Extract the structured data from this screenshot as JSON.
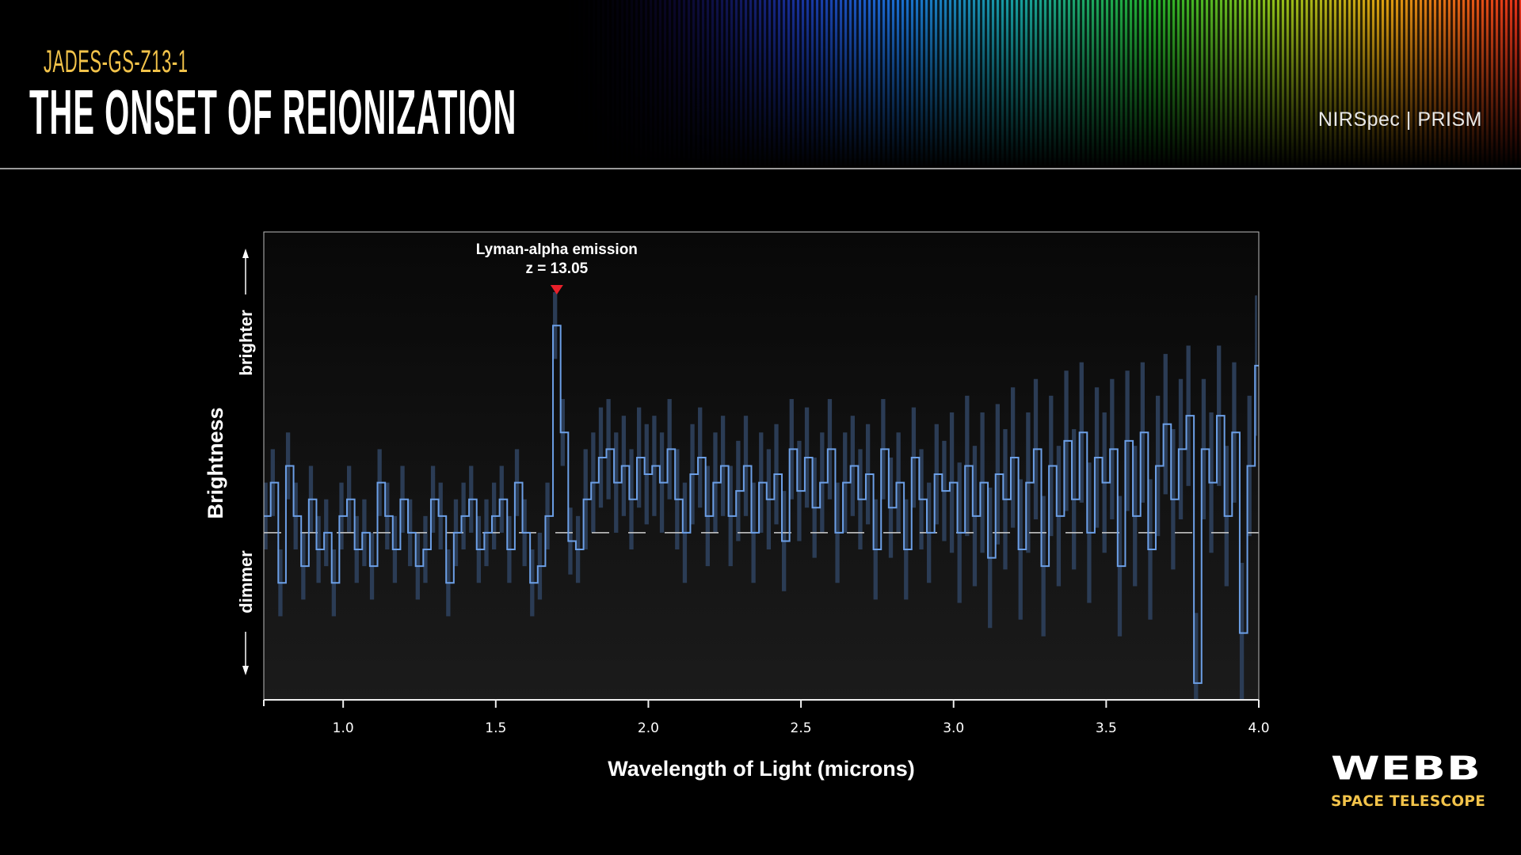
{
  "header": {
    "subtitle": "JADES-GS-Z13-1",
    "title": "THE ONSET OF REIONIZATION",
    "instrument": "NIRSpec | PRISM"
  },
  "logo": {
    "name": "WEBB",
    "tagline": "SPACE TELESCOPE"
  },
  "colors": {
    "accent_yellow": "#f2c34a",
    "spectrum_line": "#6c9fe6",
    "error_bars": "#2b3c55",
    "marker": "#e8202a"
  },
  "chart_data": {
    "type": "line",
    "style": "step",
    "xlabel": "Wavelength of Light (microns)",
    "ylabel": "Brightness",
    "ylabel_up": "brighter",
    "ylabel_down": "dimmer",
    "xlim": [
      0.74,
      4.0
    ],
    "ylim": [
      -1.0,
      1.8
    ],
    "xticks": [
      1.0,
      1.5,
      2.0,
      2.5,
      3.0,
      3.5,
      4.0
    ],
    "xtick_labels": [
      "1.0",
      "1.5",
      "2.0",
      "2.5",
      "3.0",
      "3.5",
      "4.0"
    ],
    "zero_line": {
      "y": 0,
      "style": "dashed"
    },
    "annotation": {
      "line1": "Lyman-alpha emission",
      "line2": "z = 13.05",
      "x": 1.7
    },
    "grid": false,
    "uncertainty": [
      {
        "from": 0.74,
        "to": 1.8,
        "sigma": 0.2
      },
      {
        "from": 1.8,
        "to": 3.0,
        "sigma": 0.3
      },
      {
        "from": 3.0,
        "to": 4.0,
        "sigma": 0.42
      }
    ],
    "x": [
      0.75,
      0.775,
      0.8,
      0.825,
      0.85,
      0.875,
      0.9,
      0.925,
      0.95,
      0.975,
      1.0,
      1.025,
      1.05,
      1.075,
      1.1,
      1.125,
      1.15,
      1.175,
      1.2,
      1.225,
      1.25,
      1.275,
      1.3,
      1.325,
      1.35,
      1.375,
      1.4,
      1.425,
      1.45,
      1.475,
      1.5,
      1.525,
      1.55,
      1.575,
      1.6,
      1.625,
      1.65,
      1.675,
      1.7,
      1.725,
      1.75,
      1.775,
      1.8,
      1.825,
      1.85,
      1.875,
      1.9,
      1.925,
      1.95,
      1.975,
      2.0,
      2.025,
      2.05,
      2.075,
      2.1,
      2.125,
      2.15,
      2.175,
      2.2,
      2.225,
      2.25,
      2.275,
      2.3,
      2.325,
      2.35,
      2.375,
      2.4,
      2.425,
      2.45,
      2.475,
      2.5,
      2.525,
      2.55,
      2.575,
      2.6,
      2.625,
      2.65,
      2.675,
      2.7,
      2.725,
      2.75,
      2.775,
      2.8,
      2.825,
      2.85,
      2.875,
      2.9,
      2.925,
      2.95,
      2.975,
      3.0,
      3.025,
      3.05,
      3.075,
      3.1,
      3.125,
      3.15,
      3.175,
      3.2,
      3.225,
      3.25,
      3.275,
      3.3,
      3.325,
      3.35,
      3.375,
      3.4,
      3.425,
      3.45,
      3.475,
      3.5,
      3.525,
      3.55,
      3.575,
      3.6,
      3.625,
      3.65,
      3.675,
      3.7,
      3.725,
      3.75,
      3.775,
      3.8,
      3.825,
      3.85,
      3.875,
      3.9,
      3.925,
      3.95,
      3.975,
      4.0
    ],
    "values": [
      0.1,
      0.3,
      -0.3,
      0.4,
      0.1,
      -0.2,
      0.2,
      -0.1,
      0.0,
      -0.3,
      0.1,
      0.2,
      -0.1,
      0.0,
      -0.2,
      0.3,
      0.1,
      -0.1,
      0.2,
      0.0,
      -0.2,
      -0.1,
      0.2,
      0.1,
      -0.3,
      0.0,
      0.1,
      0.2,
      -0.1,
      0.0,
      0.1,
      0.2,
      -0.1,
      0.3,
      0.0,
      -0.3,
      -0.2,
      0.1,
      1.24,
      0.6,
      -0.05,
      -0.1,
      0.2,
      0.3,
      0.45,
      0.5,
      0.3,
      0.4,
      0.2,
      0.45,
      0.35,
      0.4,
      0.3,
      0.5,
      0.2,
      0.0,
      0.35,
      0.45,
      0.1,
      0.3,
      0.4,
      0.1,
      0.25,
      0.4,
      0.0,
      0.3,
      0.2,
      0.35,
      -0.05,
      0.5,
      0.25,
      0.45,
      0.15,
      0.3,
      0.5,
      0.0,
      0.3,
      0.4,
      0.2,
      0.35,
      -0.1,
      0.5,
      0.15,
      0.3,
      -0.1,
      0.45,
      0.2,
      0.0,
      0.35,
      0.25,
      0.3,
      0.0,
      0.4,
      0.1,
      0.3,
      -0.15,
      0.35,
      0.2,
      0.45,
      -0.1,
      0.3,
      0.5,
      -0.2,
      0.4,
      0.1,
      0.55,
      0.2,
      0.6,
      0.0,
      0.45,
      0.3,
      0.5,
      -0.2,
      0.55,
      0.1,
      0.6,
      -0.1,
      0.4,
      0.65,
      0.2,
      0.5,
      0.7,
      -0.9,
      0.5,
      0.3,
      0.7,
      0.1,
      0.6,
      -0.6,
      0.4,
      1.0
    ]
  }
}
